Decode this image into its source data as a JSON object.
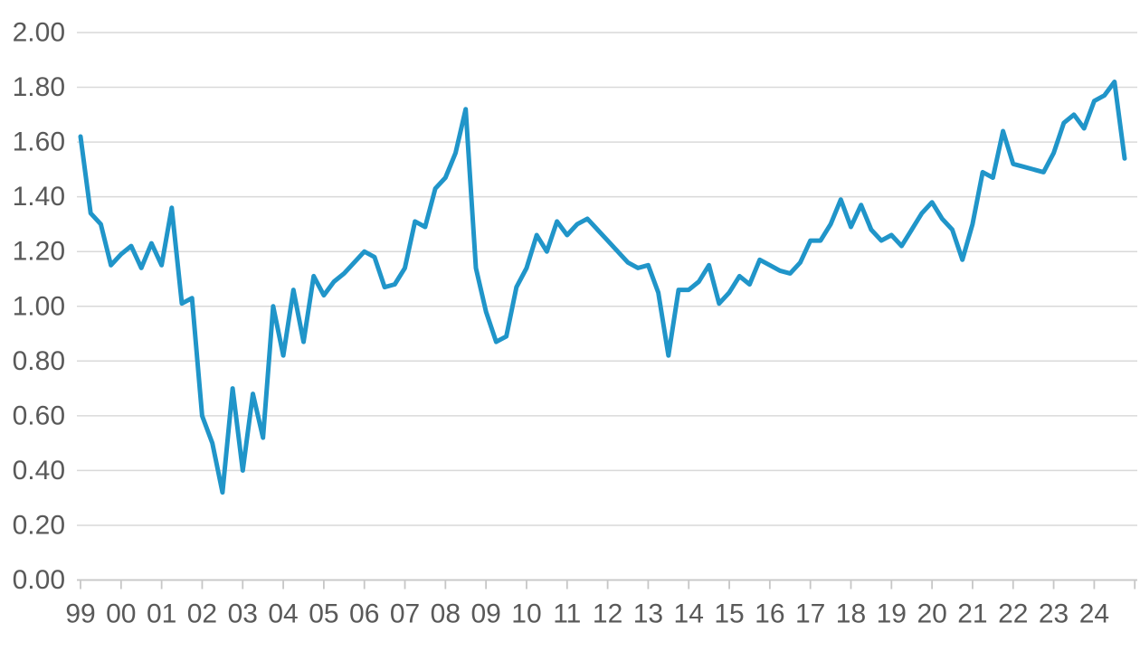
{
  "page": {
    "title": "",
    "background_color": "#ffffff"
  },
  "chart_data": {
    "type": "line",
    "title": "",
    "subtitle": "",
    "xlabel": "",
    "ylabel": "",
    "frequency": "quarterly",
    "x_start_year": 1999,
    "x_end_year": 2024,
    "x_tick_labels": [
      "99",
      "00",
      "01",
      "02",
      "03",
      "04",
      "05",
      "06",
      "07",
      "08",
      "09",
      "10",
      "11",
      "12",
      "13",
      "14",
      "15",
      "16",
      "17",
      "18",
      "19",
      "20",
      "21",
      "22",
      "23",
      "24"
    ],
    "y_ticks": [
      0.0,
      0.2,
      0.4,
      0.6,
      0.8,
      1.0,
      1.2,
      1.4,
      1.6,
      1.8,
      2.0
    ],
    "y_tick_labels": [
      "0.00",
      "0.20",
      "0.40",
      "0.60",
      "0.80",
      "1.00",
      "1.20",
      "1.40",
      "1.60",
      "1.80",
      "2.00"
    ],
    "ylim": [
      0.0,
      2.0
    ],
    "grid": "horizontal",
    "legend": "none",
    "series": [
      {
        "name": "value",
        "values": [
          1.62,
          1.34,
          1.3,
          1.15,
          1.19,
          1.22,
          1.14,
          1.23,
          1.15,
          1.36,
          1.01,
          1.03,
          0.6,
          0.5,
          0.32,
          0.7,
          0.4,
          0.68,
          0.52,
          1.0,
          0.82,
          1.06,
          0.87,
          1.11,
          1.04,
          1.09,
          1.12,
          1.16,
          1.2,
          1.18,
          1.07,
          1.08,
          1.14,
          1.31,
          1.29,
          1.43,
          1.47,
          1.56,
          1.72,
          1.14,
          0.98,
          0.87,
          0.89,
          1.07,
          1.14,
          1.26,
          1.2,
          1.31,
          1.26,
          1.3,
          1.32,
          1.28,
          1.24,
          1.2,
          1.16,
          1.14,
          1.15,
          1.05,
          0.82,
          1.06,
          1.06,
          1.09,
          1.15,
          1.01,
          1.05,
          1.11,
          1.08,
          1.17,
          1.15,
          1.13,
          1.12,
          1.16,
          1.24,
          1.24,
          1.3,
          1.39,
          1.29,
          1.37,
          1.28,
          1.24,
          1.26,
          1.22,
          1.28,
          1.34,
          1.38,
          1.32,
          1.28,
          1.17,
          1.3,
          1.49,
          1.47,
          1.64,
          1.52,
          1.51,
          1.5,
          1.49,
          1.56,
          1.67,
          1.7,
          1.65,
          1.75,
          1.77,
          1.82,
          1.54
        ]
      }
    ],
    "colors": {
      "line": "#2095C9",
      "gridline": "#D9D9D9",
      "axis": "#C6C6C6",
      "tick": "#C6C6C6",
      "label_text": "#595959"
    }
  }
}
